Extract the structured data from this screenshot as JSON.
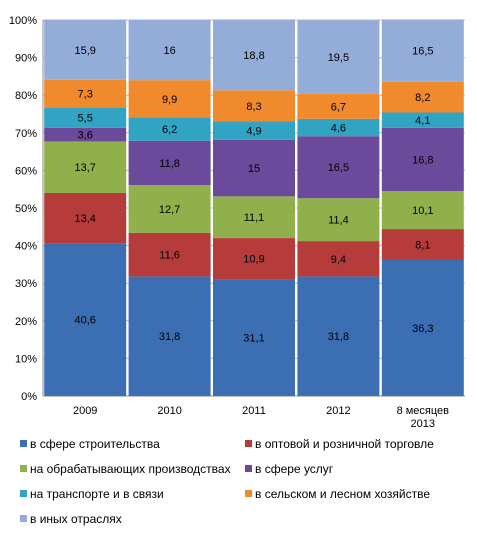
{
  "chart_data": {
    "type": "bar",
    "stacked": true,
    "percent_stacked": true,
    "grid": true,
    "legend_position": "bottom",
    "categories": [
      "2009",
      "2010",
      "2011",
      "2012",
      "8 месяцев\n2013"
    ],
    "y_ticks": [
      "0%",
      "10%",
      "20%",
      "30%",
      "40%",
      "50%",
      "60%",
      "70%",
      "80%",
      "90%",
      "100%"
    ],
    "ylim": [
      0,
      100
    ],
    "series": [
      {
        "name": "в сфере строительства",
        "color": "#3c6eb4",
        "values": [
          40.6,
          31.8,
          31.1,
          31.8,
          36.3
        ],
        "labels": [
          "40,6",
          "31,8",
          "31,1",
          "31,8",
          "36,3"
        ]
      },
      {
        "name": "в оптовой и розничной торговле",
        "color": "#b63c3c",
        "values": [
          13.4,
          11.6,
          10.9,
          9.4,
          8.1
        ],
        "labels": [
          "13,4",
          "11,6",
          "10,9",
          "9,4",
          "8,1"
        ]
      },
      {
        "name": "на обрабатывающих  производствах",
        "color": "#8fb04a",
        "values": [
          13.7,
          12.7,
          11.1,
          11.4,
          10.1
        ],
        "labels": [
          "13,7",
          "12,7",
          "11,1",
          "11,4",
          "10,1"
        ]
      },
      {
        "name": "в сфере услуг",
        "color": "#6b4a9b",
        "values": [
          3.6,
          11.8,
          15,
          16.5,
          16.8
        ],
        "labels": [
          "3,6",
          "11,8",
          "15",
          "16,5",
          "16,8"
        ]
      },
      {
        "name": "на транспорте и в связи",
        "color": "#31a4c4",
        "values": [
          5.5,
          6.2,
          4.9,
          4.6,
          4.1
        ],
        "labels": [
          "5,5",
          "6,2",
          "4,9",
          "4,6",
          "4,1"
        ]
      },
      {
        "name": "в сельском и лесном хозяйстве",
        "color": "#f08a2c",
        "values": [
          7.3,
          9.9,
          8.3,
          6.7,
          8.2
        ],
        "labels": [
          "7,3",
          "9,9",
          "8,3",
          "6,7",
          "8,2"
        ]
      },
      {
        "name": "в иных отраслях",
        "color": "#93acd8",
        "values": [
          15.9,
          16,
          18.8,
          19.5,
          16.5
        ],
        "labels": [
          "15,9",
          "16",
          "18,8",
          "19,5",
          "16,5"
        ]
      }
    ]
  }
}
